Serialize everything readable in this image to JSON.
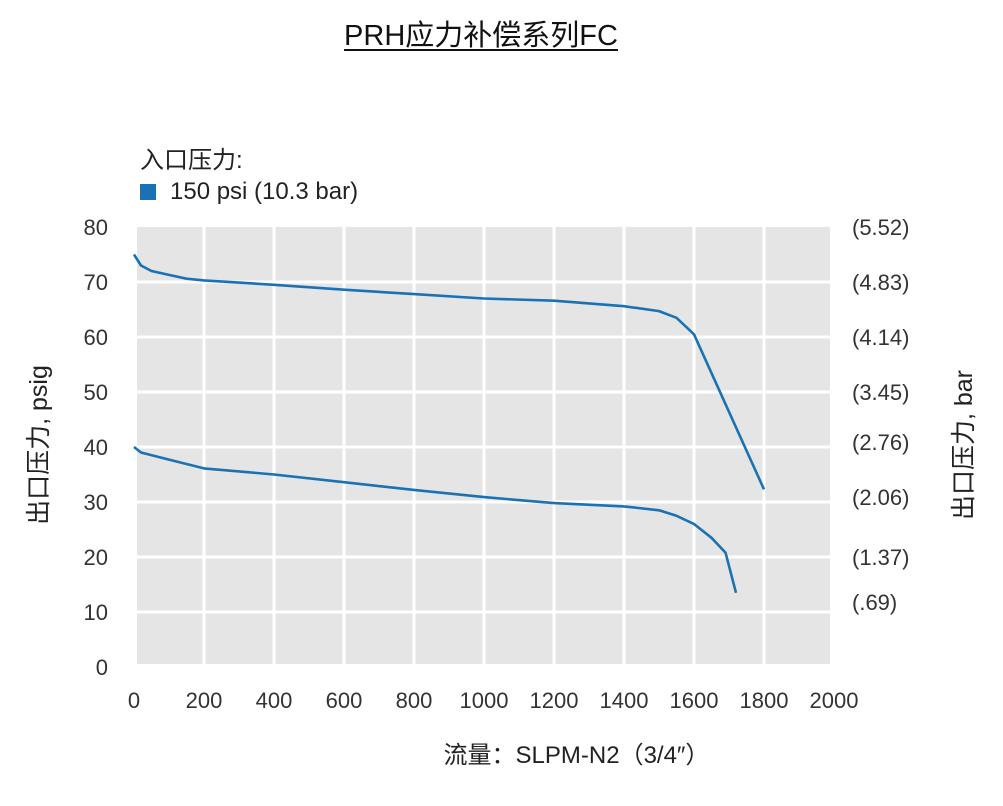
{
  "chart_data": {
    "type": "line",
    "title": "PRH应力补偿系列FC",
    "legend_title": "入口压力:",
    "legend_placement": "top-left",
    "series_legend": "150 psi (10.3 bar)",
    "xlabel": "流量：SLPM-N2（3/4″）",
    "ylabel": "出口压力, psig",
    "ylabel_right": "出口压力, bar",
    "xlim": [
      0,
      2000
    ],
    "ylim": [
      0,
      80
    ],
    "grid": true,
    "background": "#e5e5e5",
    "series_color": "#1a72b4",
    "x_ticks": [
      "0",
      "200",
      "400",
      "600",
      "800",
      "1000",
      "1200",
      "1400",
      "1600",
      "1800",
      "2000"
    ],
    "y_ticks": [
      "0",
      "10",
      "20",
      "30",
      "40",
      "50",
      "60",
      "70",
      "80"
    ],
    "y_right_ticks": [
      "(.69)",
      "(1.37)",
      "(2.06)",
      "(2.76)",
      "(3.45)",
      "(4.14)",
      "(4.83)",
      "(5.52)"
    ],
    "series": [
      {
        "x": [
          0,
          20,
          50,
          100,
          150,
          200,
          400,
          600,
          800,
          1000,
          1200,
          1400,
          1500,
          1550,
          1600,
          1800
        ],
        "y": [
          75,
          73,
          72,
          71.3,
          70.6,
          70.3,
          69.5,
          68.6,
          67.8,
          67,
          66.6,
          65.6,
          64.7,
          63.5,
          60.5,
          32.3
        ]
      },
      {
        "x": [
          0,
          20,
          100,
          200,
          400,
          600,
          800,
          1000,
          1200,
          1400,
          1500,
          1550,
          1600,
          1650,
          1690,
          1720
        ],
        "y": [
          40,
          39,
          37.7,
          36.1,
          35,
          33.6,
          32.2,
          30.9,
          29.8,
          29.2,
          28.5,
          27.5,
          26,
          23.5,
          20.8,
          13.5
        ]
      }
    ]
  }
}
